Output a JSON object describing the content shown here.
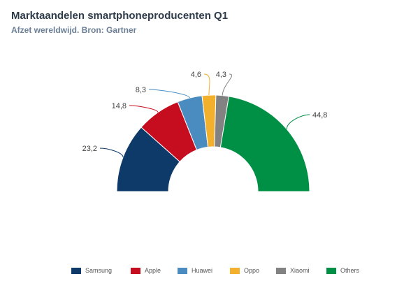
{
  "chart_data": {
    "type": "pie",
    "variant": "semi-donut",
    "title": "Marktaandelen smartphoneproducenten Q1",
    "subtitle": "Afzet wereldwijd. Bron: Gartner",
    "categories": [
      "Samsung",
      "Apple",
      "Huawei",
      "Oppo",
      "Xiaomi",
      "Others"
    ],
    "values": [
      23.2,
      14.8,
      8.3,
      4.6,
      4.3,
      44.8
    ],
    "value_labels": [
      "23,2",
      "14,8",
      "8,3",
      "4,6",
      "4,3",
      "44,8"
    ],
    "colors": [
      "#0d3a68",
      "#c50d1f",
      "#4a8cc0",
      "#f3b02d",
      "#828282",
      "#009045"
    ],
    "legend_position": "bottom-right"
  }
}
